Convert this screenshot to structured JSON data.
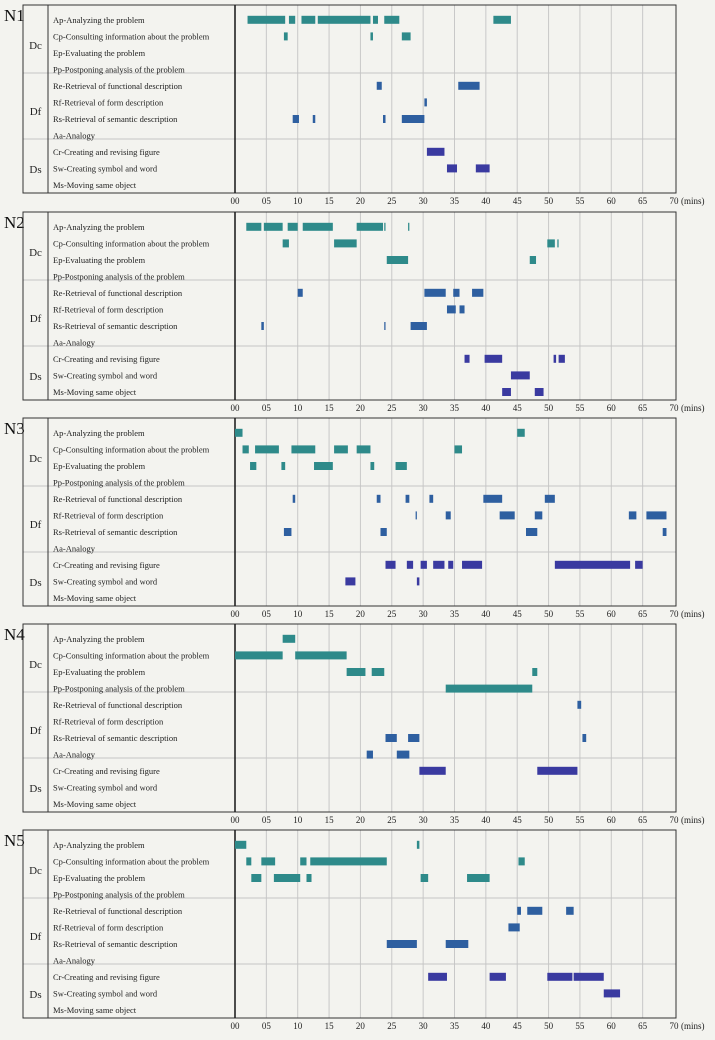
{
  "chart_data": {
    "type": "gantt",
    "x_unit_label": "(mins)",
    "xlim": [
      0,
      70
    ],
    "x_ticks": [
      "00",
      "05",
      "10",
      "15",
      "20",
      "25",
      "30",
      "35",
      "40",
      "45",
      "50",
      "55",
      "60",
      "65",
      "70"
    ],
    "colors": {
      "Dc": "#2e8a8a",
      "Df": "#2e5fa0",
      "Ds": "#3a3aa0"
    },
    "groups": [
      {
        "code": "Dc",
        "rows": [
          "Ap-Analyzing the problem",
          "Cp-Consulting information about the problem",
          "Ep-Evaluating the problem",
          "Pp-Postponing analysis of the problem"
        ]
      },
      {
        "code": "Df",
        "rows": [
          "Re-Retrieval of functional description",
          "Rf-Retrieval of form description",
          "Rs-Retrieval of semantic description",
          "Aa-Analogy"
        ]
      },
      {
        "code": "Ds",
        "rows": [
          "Cr-Creating and revising figure",
          "Sw-Creating symbol and word",
          "Ms-Moving same object"
        ]
      }
    ],
    "panels": [
      {
        "label": "N1",
        "bars": [
          [
            [
              2,
              8
            ],
            [
              8.6,
              9.6
            ],
            [
              10.6,
              12.8
            ],
            [
              13.2,
              21.6
            ],
            [
              22,
              22.8
            ],
            [
              23.8,
              26.2
            ],
            [
              41.2,
              44
            ]
          ],
          [
            [
              7.8,
              8.4
            ],
            [
              21.6,
              22
            ],
            [
              26.6,
              28
            ]
          ],
          [],
          [],
          [
            [
              22.6,
              23.4
            ],
            [
              35.6,
              39
            ]
          ],
          [
            [
              30.2,
              30.6
            ]
          ],
          [
            [
              9.2,
              10.2
            ],
            [
              12.4,
              12.8
            ],
            [
              23.6,
              24
            ],
            [
              26.6,
              30.2
            ]
          ],
          [],
          [
            [
              30.6,
              33.4
            ]
          ],
          [
            [
              33.8,
              35.4
            ],
            [
              38.4,
              40.6
            ]
          ],
          []
        ]
      },
      {
        "label": "N2",
        "bars": [
          [
            [
              1.8,
              4.2
            ],
            [
              4.6,
              7.6
            ],
            [
              8.4,
              10
            ],
            [
              10.8,
              15.6
            ],
            [
              19.4,
              23.6
            ],
            [
              23.8,
              24
            ],
            [
              27.6,
              27.8
            ]
          ],
          [
            [
              7.6,
              8.6
            ],
            [
              15.8,
              19.4
            ],
            [
              49.8,
              51
            ],
            [
              51.4,
              51.6
            ]
          ],
          [
            [
              24.2,
              27.6
            ],
            [
              47,
              48
            ]
          ],
          [],
          [
            [
              10,
              10.8
            ],
            [
              30.2,
              33.6
            ],
            [
              34.8,
              35.8
            ],
            [
              37.8,
              39.6
            ]
          ],
          [
            [
              33.8,
              35.2
            ],
            [
              35.8,
              36.6
            ]
          ],
          [
            [
              4.2,
              4.6
            ],
            [
              23.8,
              24
            ],
            [
              28,
              30.6
            ]
          ],
          [],
          [
            [
              36.6,
              37.4
            ],
            [
              39.8,
              42.6
            ],
            [
              50.8,
              51.2
            ],
            [
              51.6,
              52.6
            ]
          ],
          [
            [
              44,
              47
            ]
          ],
          [
            [
              42.6,
              44
            ],
            [
              47.8,
              49.2
            ]
          ]
        ]
      },
      {
        "label": "N3",
        "bars": [
          [
            [
              0,
              1.2
            ],
            [
              45,
              46.2
            ]
          ],
          [
            [
              1.2,
              2.2
            ],
            [
              3.2,
              7
            ],
            [
              9,
              12.8
            ],
            [
              15.8,
              18
            ],
            [
              19.4,
              21.6
            ],
            [
              35,
              36.2
            ]
          ],
          [
            [
              2.4,
              3.4
            ],
            [
              7.4,
              8
            ],
            [
              12.6,
              15.6
            ],
            [
              21.6,
              22.2
            ],
            [
              25.6,
              27.4
            ]
          ],
          [],
          [
            [
              9.2,
              9.6
            ],
            [
              22.6,
              23.2
            ],
            [
              27.2,
              27.8
            ],
            [
              31,
              31.6
            ],
            [
              39.6,
              42.6
            ],
            [
              49.4,
              51
            ]
          ],
          [
            [
              28.8,
              29
            ],
            [
              33.6,
              34.4
            ],
            [
              42.2,
              44.6
            ],
            [
              47.8,
              49
            ],
            [
              62.8,
              64
            ],
            [
              65.6,
              68.8
            ]
          ],
          [
            [
              7.8,
              9
            ],
            [
              23.2,
              24.2
            ],
            [
              46.4,
              48.2
            ],
            [
              68.2,
              68.8
            ]
          ],
          [],
          [
            [
              24,
              25.6
            ],
            [
              27.4,
              28.4
            ],
            [
              29.6,
              30.6
            ],
            [
              31.6,
              33.4
            ],
            [
              34,
              34.8
            ],
            [
              36.2,
              39.4
            ],
            [
              51,
              63
            ],
            [
              63.8,
              65
            ]
          ],
          [
            [
              17.6,
              19.2
            ],
            [
              29,
              29.4
            ]
          ],
          []
        ]
      },
      {
        "label": "N4",
        "bars": [
          [
            [
              7.6,
              9.6
            ]
          ],
          [
            [
              0,
              7.6
            ],
            [
              9.6,
              17.8
            ]
          ],
          [
            [
              17.8,
              20.8
            ],
            [
              21.8,
              23.8
            ],
            [
              47.4,
              48.2
            ]
          ],
          [
            [
              33.6,
              47.4
            ]
          ],
          [
            [
              54.6,
              55.2
            ]
          ],
          [],
          [
            [
              24,
              25.8
            ],
            [
              27.6,
              29.4
            ],
            [
              55.4,
              56
            ]
          ],
          [
            [
              21,
              22
            ],
            [
              25.8,
              27.8
            ]
          ],
          [
            [
              29.4,
              33.6
            ],
            [
              48.2,
              54.6
            ]
          ],
          [],
          []
        ]
      },
      {
        "label": "N5",
        "bars": [
          [
            [
              0,
              1.8
            ],
            [
              29,
              29.4
            ]
          ],
          [
            [
              1.8,
              2.6
            ],
            [
              4.2,
              6.4
            ],
            [
              10.4,
              11.4
            ],
            [
              12,
              24.2
            ],
            [
              45.2,
              46.2
            ]
          ],
          [
            [
              2.6,
              4.2
            ],
            [
              6.2,
              10.4
            ],
            [
              11.4,
              12.2
            ],
            [
              29.6,
              30.8
            ],
            [
              37,
              40.6
            ]
          ],
          [],
          [
            [
              45,
              45.6
            ],
            [
              46.6,
              49
            ],
            [
              52.8,
              54
            ]
          ],
          [
            [
              43.6,
              45.4
            ]
          ],
          [
            [
              24.2,
              29
            ],
            [
              33.6,
              37.2
            ]
          ],
          [],
          [
            [
              30.8,
              33.8
            ],
            [
              40.6,
              43.2
            ],
            [
              49.8,
              53.8
            ],
            [
              54,
              58.8
            ]
          ],
          [
            [
              58.8,
              61.4
            ]
          ],
          []
        ]
      }
    ]
  }
}
